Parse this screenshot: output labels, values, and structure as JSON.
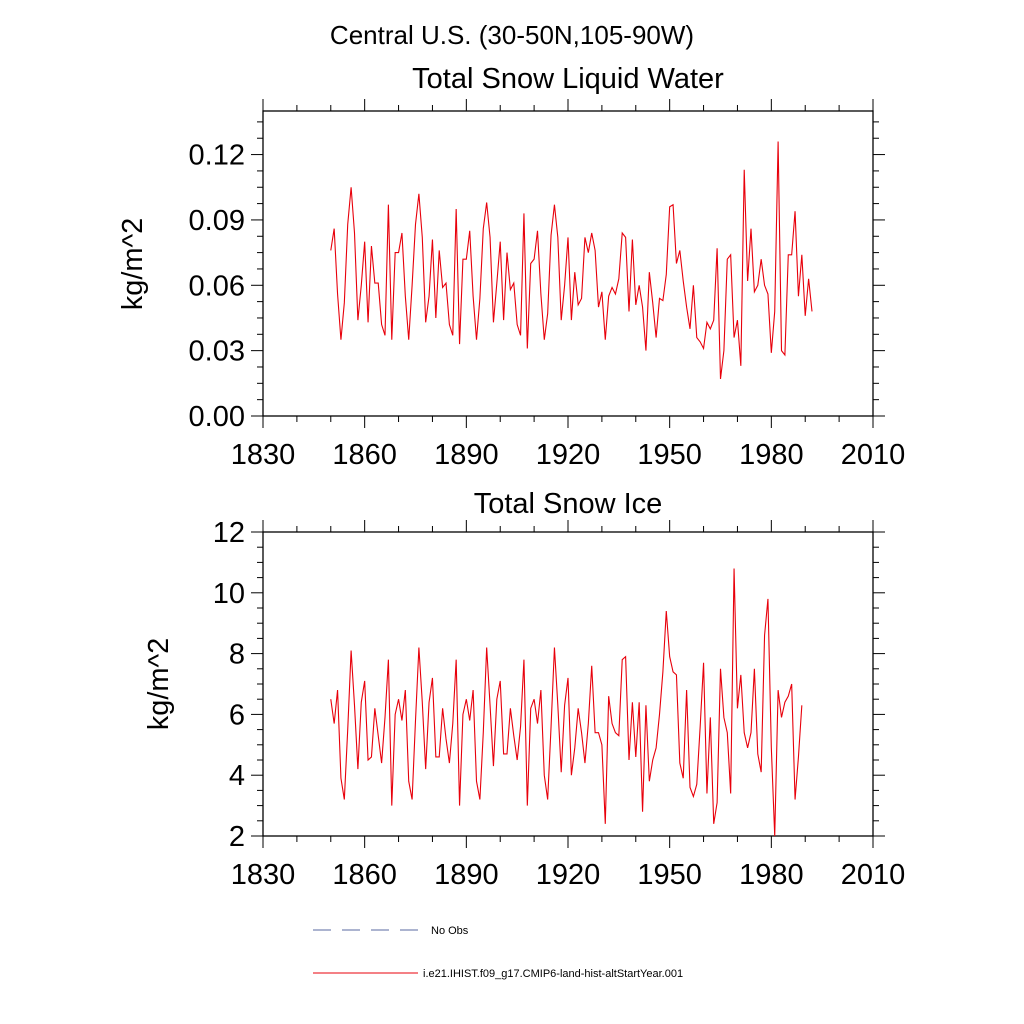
{
  "figure": {
    "title": "Central U.S. (30-50N,105-90W)"
  },
  "chart_data": [
    {
      "type": "line",
      "title": "Total Snow Liquid Water",
      "xlabel": "",
      "ylabel": "kg/m^2",
      "xlim": [
        1830,
        2010
      ],
      "ylim": [
        0,
        0.14
      ],
      "x_ticks": [
        1830,
        1860,
        1890,
        1920,
        1950,
        1980,
        2010
      ],
      "x_tick_labels": [
        "1830",
        "1860",
        "1890",
        "1920",
        "1950",
        "1980",
        "2010"
      ],
      "y_ticks": [
        0,
        0.03,
        0.06,
        0.09,
        0.12
      ],
      "y_tick_labels": [
        "0.00",
        "0.03",
        "0.06",
        "0.09",
        "0.12"
      ],
      "grid": false,
      "x_start": 1850,
      "series": [
        {
          "name": "i.e21.IHIST.f09_g17.CMIP6-land-hist-altStartYear.001",
          "color": "#e8000b",
          "values": [
            0.076,
            0.086,
            0.056,
            0.035,
            0.052,
            0.088,
            0.105,
            0.084,
            0.044,
            0.06,
            0.08,
            0.043,
            0.078,
            0.061,
            0.061,
            0.042,
            0.037,
            0.097,
            0.035,
            0.075,
            0.075,
            0.084,
            0.055,
            0.035,
            0.06,
            0.088,
            0.102,
            0.082,
            0.043,
            0.055,
            0.081,
            0.045,
            0.076,
            0.059,
            0.061,
            0.042,
            0.037,
            0.095,
            0.033,
            0.072,
            0.072,
            0.085,
            0.055,
            0.035,
            0.054,
            0.086,
            0.098,
            0.082,
            0.043,
            0.061,
            0.08,
            0.044,
            0.075,
            0.058,
            0.061,
            0.042,
            0.037,
            0.093,
            0.031,
            0.07,
            0.072,
            0.085,
            0.056,
            0.035,
            0.047,
            0.083,
            0.097,
            0.082,
            0.044,
            0.06,
            0.082,
            0.044,
            0.066,
            0.051,
            0.054,
            0.082,
            0.075,
            0.084,
            0.076,
            0.05,
            0.057,
            0.035,
            0.055,
            0.059,
            0.056,
            0.063,
            0.084,
            0.082,
            0.048,
            0.081,
            0.051,
            0.06,
            0.05,
            0.03,
            0.066,
            0.052,
            0.036,
            0.054,
            0.053,
            0.065,
            0.096,
            0.097,
            0.07,
            0.076,
            0.062,
            0.05,
            0.04,
            0.06,
            0.036,
            0.034,
            0.031,
            0.043,
            0.04,
            0.044,
            0.077,
            0.017,
            0.03,
            0.072,
            0.074,
            0.036,
            0.044,
            0.023,
            0.113,
            0.062,
            0.086,
            0.057,
            0.06,
            0.072,
            0.06,
            0.056,
            0.029,
            0.048,
            0.126,
            0.03,
            0.028,
            0.074,
            0.074,
            0.094,
            0.055,
            0.074,
            0.046,
            0.063,
            0.048
          ]
        }
      ]
    },
    {
      "type": "line",
      "title": "Total Snow Ice",
      "xlabel": "",
      "ylabel": "kg/m^2",
      "xlim": [
        1830,
        2010
      ],
      "ylim": [
        2,
        12
      ],
      "x_ticks": [
        1830,
        1860,
        1890,
        1920,
        1950,
        1980,
        2010
      ],
      "x_tick_labels": [
        "1830",
        "1860",
        "1890",
        "1920",
        "1950",
        "1980",
        "2010"
      ],
      "y_ticks": [
        2,
        4,
        6,
        8,
        10,
        12
      ],
      "y_tick_labels": [
        "2",
        "4",
        "6",
        "8",
        "10",
        "12"
      ],
      "grid": false,
      "x_start": 1850,
      "series": [
        {
          "name": "i.e21.IHIST.f09_g17.CMIP6-land-hist-altStartYear.001",
          "color": "#e8000b",
          "values": [
            6.5,
            5.7,
            6.8,
            3.9,
            3.2,
            5.5,
            8.1,
            6.3,
            4.2,
            6.4,
            7.1,
            4.5,
            4.6,
            6.2,
            5.3,
            4.4,
            5.9,
            7.8,
            3.0,
            6.0,
            6.5,
            5.8,
            6.8,
            3.8,
            3.2,
            5.8,
            8.2,
            6.4,
            4.2,
            6.4,
            7.2,
            4.6,
            4.6,
            6.2,
            5.2,
            4.4,
            5.7,
            7.8,
            3.0,
            6.0,
            6.5,
            5.8,
            6.8,
            3.8,
            3.2,
            5.4,
            8.2,
            6.3,
            4.3,
            6.5,
            7.1,
            4.7,
            4.7,
            6.2,
            5.3,
            4.5,
            5.6,
            7.8,
            3.0,
            6.2,
            6.5,
            5.7,
            6.8,
            4.0,
            3.2,
            5.6,
            8.2,
            6.3,
            4.1,
            6.3,
            7.2,
            4.0,
            4.9,
            6.2,
            5.4,
            4.4,
            5.7,
            7.6,
            5.4,
            5.4,
            5.0,
            2.4,
            6.6,
            5.7,
            5.4,
            5.3,
            7.8,
            7.9,
            4.5,
            6.4,
            4.6,
            6.4,
            2.8,
            6.3,
            3.8,
            4.5,
            4.9,
            6.0,
            7.4,
            9.4,
            7.9,
            7.4,
            7.3,
            4.4,
            3.9,
            6.8,
            3.6,
            3.3,
            3.7,
            5.6,
            7.7,
            3.4,
            5.9,
            2.4,
            3.1,
            7.5,
            5.9,
            5.4,
            3.4,
            10.8,
            6.2,
            7.3,
            5.4,
            4.9,
            5.4,
            7.5,
            4.7,
            4.1,
            8.6,
            9.8,
            4.9,
            2.0,
            6.8,
            5.9,
            6.4,
            6.6,
            7.0,
            3.2,
            4.6,
            6.3
          ]
        },
        {
          "name": "No Obs",
          "color": "#5a6aa0",
          "values": []
        }
      ]
    }
  ],
  "legend": {
    "placement": "bottom-left",
    "entries": [
      {
        "label": "No Obs",
        "color": "#5a6aa0",
        "dash": "dashed"
      },
      {
        "label": "i.e21.IHIST.f09_g17.CMIP6-land-hist-altStartYear.001",
        "color": "#e8000b",
        "dash": "solid"
      }
    ]
  }
}
